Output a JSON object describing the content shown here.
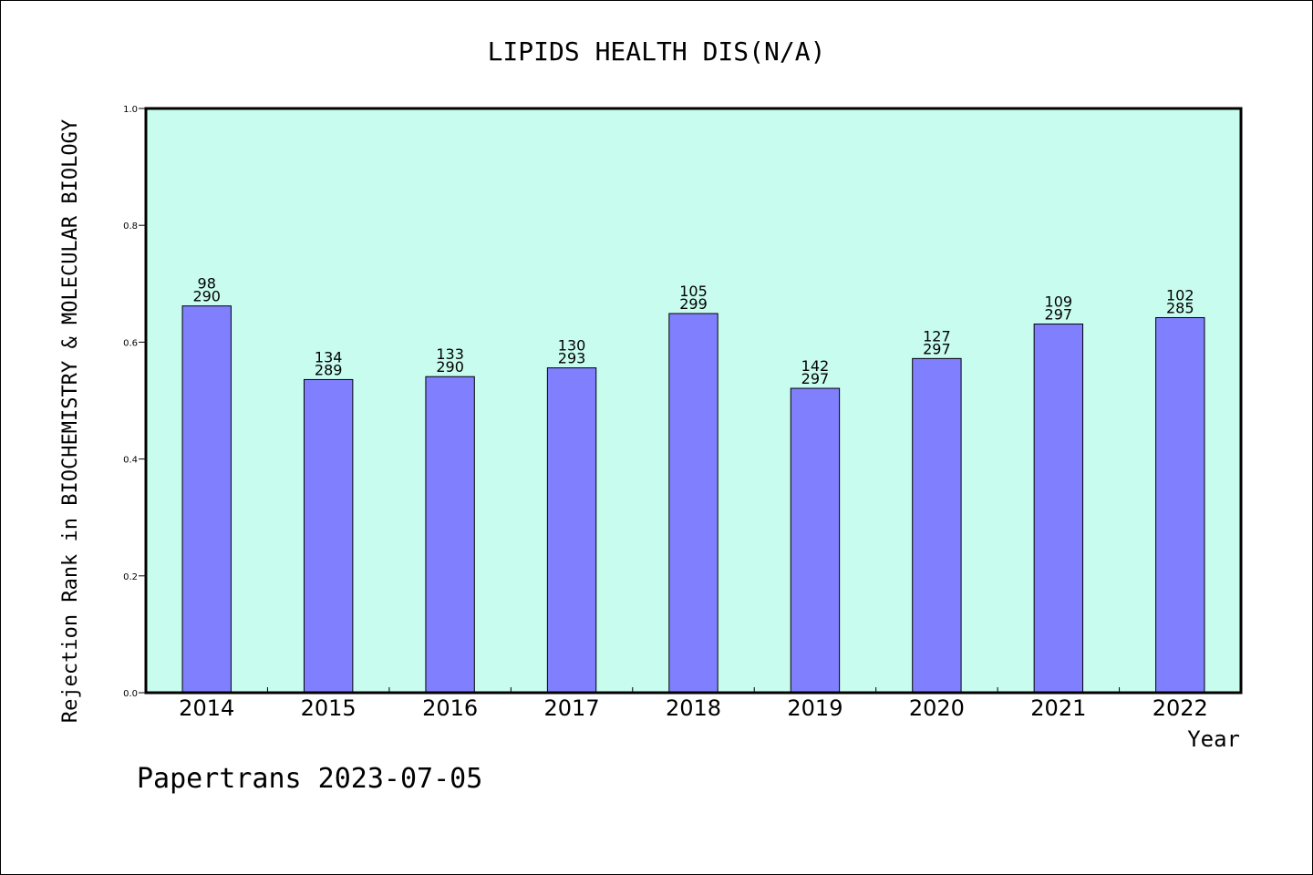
{
  "chart_data": {
    "type": "bar",
    "title": "LIPIDS HEALTH DIS(N/A)",
    "xlabel": "Year",
    "ylabel": "Rejection Rank in BIOCHEMISTRY & MOLECULAR BIOLOGY",
    "ylim": [
      0,
      1.0
    ],
    "yticks": [
      "0.0",
      "0.2",
      "0.4",
      "0.6",
      "0.8",
      "1.0"
    ],
    "categories": [
      "2014",
      "2015",
      "2016",
      "2017",
      "2018",
      "2019",
      "2020",
      "2021",
      "2022"
    ],
    "values": [
      0.662,
      0.536,
      0.541,
      0.556,
      0.649,
      0.521,
      0.572,
      0.631,
      0.642
    ],
    "rank": [
      "98",
      "134",
      "133",
      "130",
      "105",
      "142",
      "127",
      "109",
      "102"
    ],
    "total": [
      "290",
      "289",
      "290",
      "293",
      "299",
      "297",
      "297",
      "297",
      "285"
    ],
    "grid": false,
    "colors": {
      "plot_bg": "#c8fcee",
      "bar": "#8080ff",
      "axis": "#000000"
    }
  },
  "footer": "Papertrans 2023-07-05"
}
